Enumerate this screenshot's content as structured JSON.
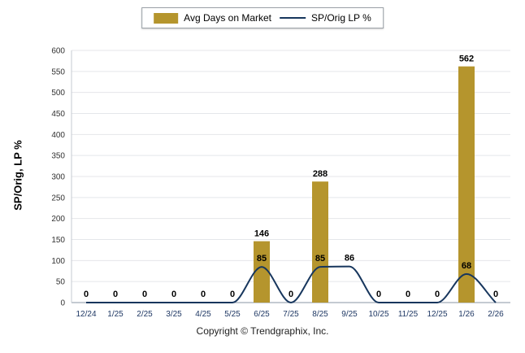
{
  "legend": {
    "items": [
      {
        "label": "Avg Days on Market",
        "type": "bar"
      },
      {
        "label": "SP/Orig LP %",
        "type": "line"
      }
    ]
  },
  "footer": {
    "copyright": "Copyright © Trendgraphix, Inc."
  },
  "chart_data": {
    "type": "bar+line",
    "title": "",
    "categories": [
      "12/24",
      "1/25",
      "2/25",
      "3/25",
      "4/25",
      "5/25",
      "6/25",
      "7/25",
      "8/25",
      "9/25",
      "10/25",
      "11/25",
      "12/25",
      "1/26",
      "2/26"
    ],
    "series": [
      {
        "name": "Avg Days on Market",
        "type": "bar",
        "color": "#b5952d",
        "values": [
          0,
          0,
          0,
          0,
          0,
          0,
          146,
          0,
          288,
          0,
          0,
          0,
          0,
          562,
          0
        ]
      },
      {
        "name": "SP/Orig LP %",
        "type": "line",
        "color": "#17365d",
        "values": [
          0,
          0,
          0,
          0,
          0,
          0,
          85,
          0,
          85,
          86,
          0,
          0,
          0,
          68,
          0
        ]
      }
    ],
    "xlabel": "",
    "ylabel": "SP/Orig, LP %",
    "ylim": [
      0,
      600
    ],
    "ytick_step": 50,
    "grid": true,
    "legend_position": "top",
    "value_labels": {
      "bar_labels_shown_when": "value > 0",
      "line_labels_shown_when": "always"
    },
    "colors": {
      "grid": "#e4e6ea",
      "axis": "#8a94a6",
      "xtick_text": "#1f3864",
      "ytick_text": "#333333",
      "value_text": "#000000"
    }
  }
}
